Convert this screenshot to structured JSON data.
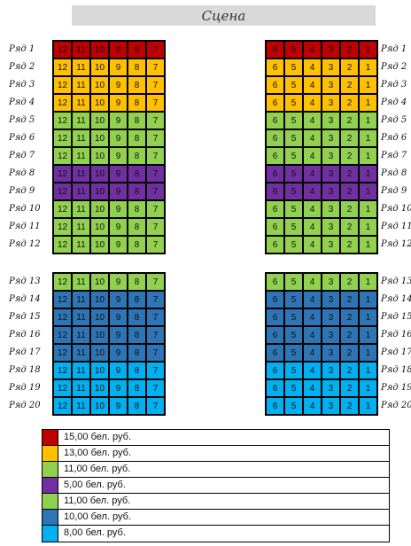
{
  "stage_label": "Сцена",
  "colors": {
    "red": "#c00000",
    "orange": "#ffc000",
    "green": "#92d050",
    "purple": "#7030a0",
    "darkblue": "#2e75b6",
    "lightblue": "#00b0f0"
  },
  "left_seats": [
    "12",
    "11",
    "10",
    "9",
    "8",
    "7"
  ],
  "right_seats": [
    "6",
    "5",
    "4",
    "3",
    "2",
    "1"
  ],
  "rows": [
    {
      "label": "Ряд 1",
      "color": "red"
    },
    {
      "label": "Ряд 2",
      "color": "orange"
    },
    {
      "label": "Ряд 3",
      "color": "orange"
    },
    {
      "label": "Ряд 4",
      "color": "orange"
    },
    {
      "label": "Ряд 5",
      "color": "green"
    },
    {
      "label": "Ряд 6",
      "color": "green"
    },
    {
      "label": "Ряд 7",
      "color": "green"
    },
    {
      "label": "Ряд 8",
      "color": "purple"
    },
    {
      "label": "Ряд 9",
      "color": "purple"
    },
    {
      "label": "Ряд 10",
      "color": "green"
    },
    {
      "label": "Ряд 11",
      "color": "green"
    },
    {
      "label": "Ряд 12",
      "color": "green"
    },
    {
      "label": "Ряд 13",
      "color": "green"
    },
    {
      "label": "Ряд 14",
      "color": "darkblue"
    },
    {
      "label": "Ряд 15",
      "color": "darkblue"
    },
    {
      "label": "Ряд 16",
      "color": "darkblue"
    },
    {
      "label": "Ряд 17",
      "color": "darkblue"
    },
    {
      "label": "Ряд 18",
      "color": "lightblue"
    },
    {
      "label": "Ряд 19",
      "color": "lightblue"
    },
    {
      "label": "Ряд 20",
      "color": "lightblue"
    }
  ],
  "legend": [
    {
      "color": "red",
      "label": "15,00 бел. руб."
    },
    {
      "color": "orange",
      "label": "13,00 бел. руб."
    },
    {
      "color": "green",
      "label": "11,00 бел. руб."
    },
    {
      "color": "purple",
      "label": "5,00 бел. руб."
    },
    {
      "color": "green",
      "label": "11,00 бел. руб."
    },
    {
      "color": "darkblue",
      "label": "10,00 бел. руб."
    },
    {
      "color": "lightblue",
      "label": "8,00 бел. руб."
    }
  ]
}
